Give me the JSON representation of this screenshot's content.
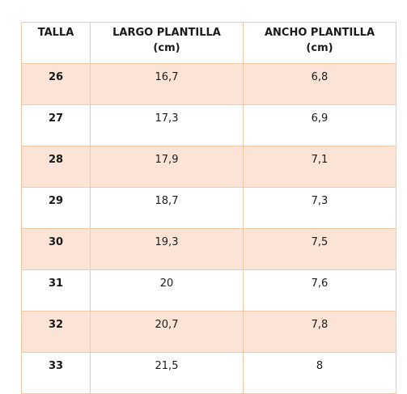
{
  "table": {
    "headers": [
      {
        "line1": "TALLA",
        "line2": ""
      },
      {
        "line1": "LARGO PLANTILLA",
        "line2": "(cm)"
      },
      {
        "line1": "ANCHO PLANTILLA",
        "line2": "(cm)"
      }
    ],
    "rows": [
      {
        "talla": "26",
        "largo": "16,7",
        "ancho": "6,8"
      },
      {
        "talla": "27",
        "largo": "17,3",
        "ancho": "6,9"
      },
      {
        "talla": "28",
        "largo": "17,9",
        "ancho": "7,1"
      },
      {
        "talla": "29",
        "largo": "18,7",
        "ancho": "7,3"
      },
      {
        "talla": "30",
        "largo": "19,3",
        "ancho": "7,5"
      },
      {
        "talla": "31",
        "largo": "20",
        "ancho": "7,6"
      },
      {
        "talla": "32",
        "largo": "20,7",
        "ancho": "7,8"
      },
      {
        "talla": "33",
        "largo": "21,5",
        "ancho": "8"
      }
    ],
    "shaded_row_color": "#fbe4d6",
    "border_color": "#f2c9a8"
  }
}
